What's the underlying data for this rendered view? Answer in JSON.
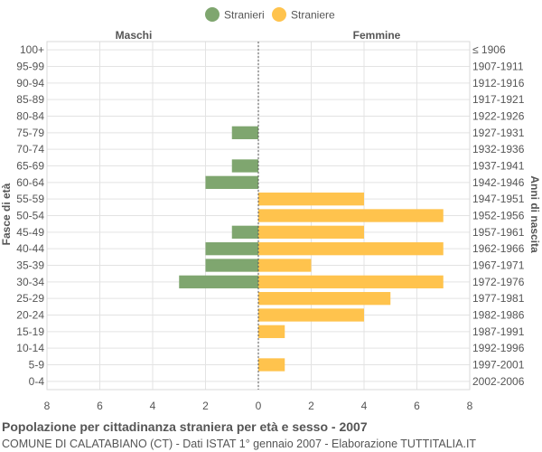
{
  "chart_data": {
    "type": "bar",
    "orientation": "horizontal",
    "legend": {
      "placement": "top-center",
      "items": [
        {
          "name": "Stranieri",
          "color": "#7fa66f"
        },
        {
          "name": "Straniere",
          "color": "#ffc34d"
        }
      ]
    },
    "left_header": "Maschi",
    "right_header": "Femmine",
    "ylabel_left": "Fasce di età",
    "ylabel_right": "Anni di nascita",
    "xlim": [
      -8,
      8
    ],
    "xticks": [
      "8",
      "6",
      "4",
      "2",
      "0",
      "2",
      "4",
      "6",
      "8"
    ],
    "grid": true,
    "categories": [
      "100+",
      "95-99",
      "90-94",
      "85-89",
      "80-84",
      "75-79",
      "70-74",
      "65-69",
      "60-64",
      "55-59",
      "50-54",
      "45-49",
      "40-44",
      "35-39",
      "30-34",
      "25-29",
      "20-24",
      "15-19",
      "10-14",
      "5-9",
      "0-4"
    ],
    "birth_years": [
      "≤ 1906",
      "1907-1911",
      "1912-1916",
      "1917-1921",
      "1922-1926",
      "1927-1931",
      "1932-1936",
      "1937-1941",
      "1942-1946",
      "1947-1951",
      "1952-1956",
      "1957-1961",
      "1962-1966",
      "1967-1971",
      "1972-1976",
      "1977-1981",
      "1982-1986",
      "1987-1991",
      "1992-1996",
      "1997-2001",
      "2002-2006"
    ],
    "series": [
      {
        "name": "Stranieri",
        "values": [
          0,
          0,
          0,
          0,
          0,
          1,
          0,
          1,
          2,
          0,
          0,
          1,
          2,
          2,
          3,
          0,
          0,
          0,
          0,
          0,
          0
        ]
      },
      {
        "name": "Straniere",
        "values": [
          0,
          0,
          0,
          0,
          0,
          0,
          0,
          0,
          0,
          4,
          7,
          4,
          7,
          2,
          7,
          5,
          4,
          1,
          0,
          1,
          0
        ]
      }
    ]
  },
  "footer": {
    "title": "Popolazione per cittadinanza straniera per età e sesso - 2007",
    "subtitle": "COMUNE DI CALATABIANO (CT) - Dati ISTAT 1° gennaio 2007 - Elaborazione TUTTITALIA.IT"
  }
}
